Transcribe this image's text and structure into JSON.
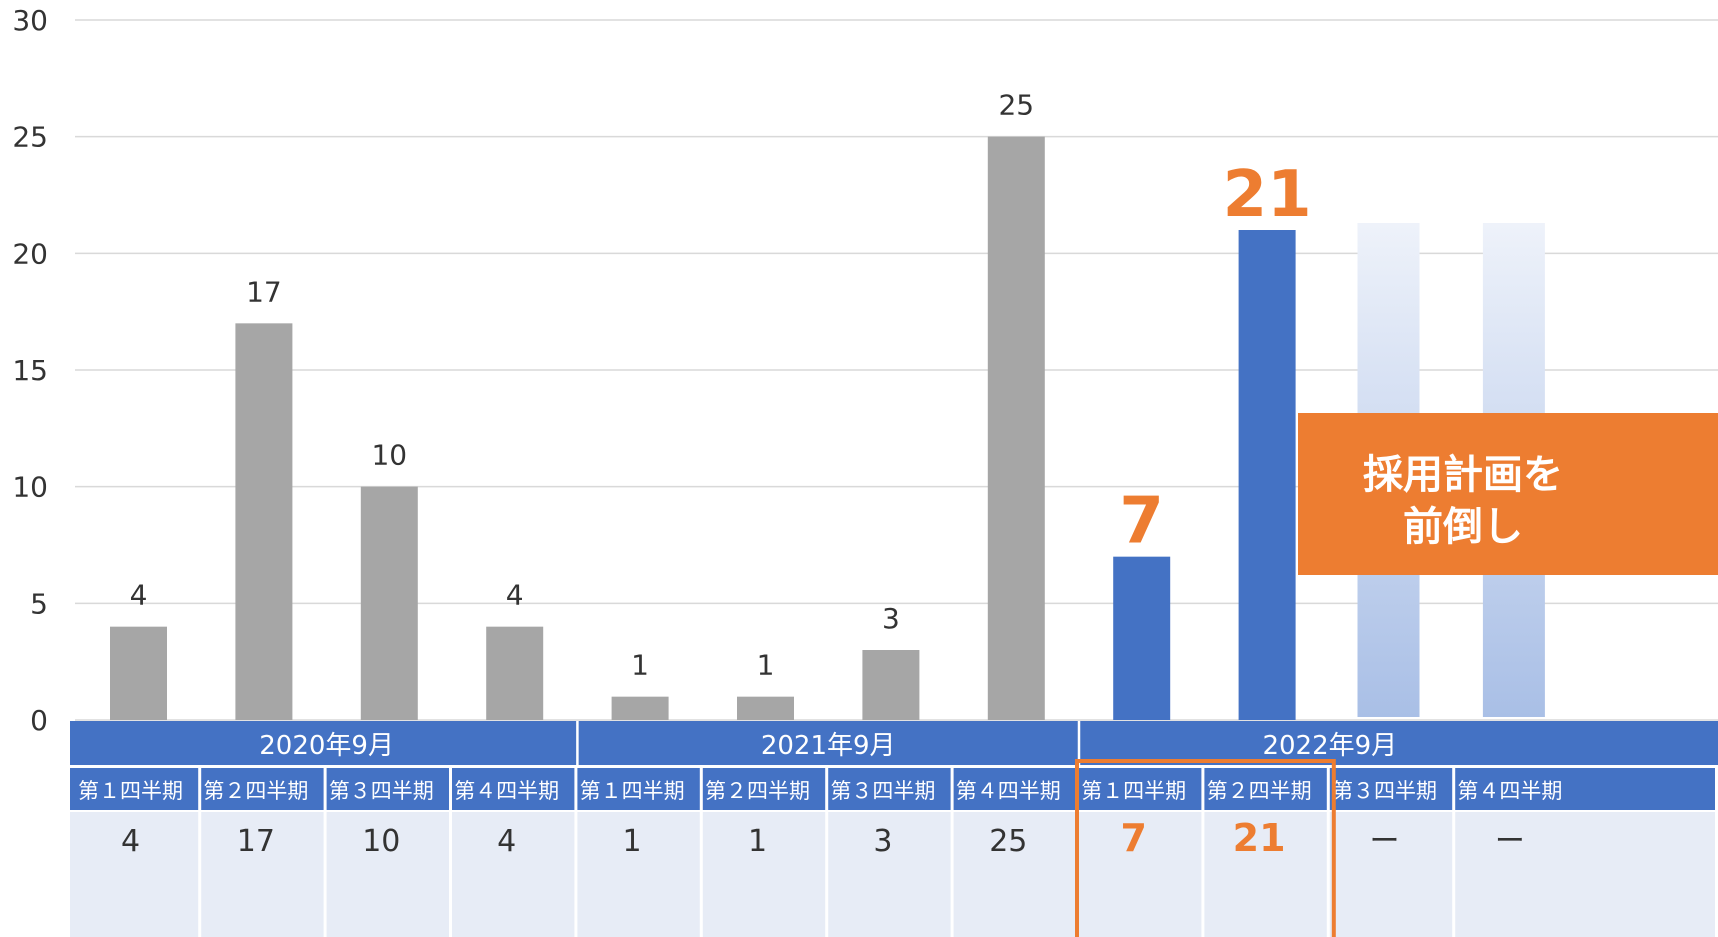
{
  "colors": {
    "past_bar": "#A6A6A6",
    "current_bar": "#4472C4",
    "future_bar_top": "#EEF2FA",
    "future_bar_bottom": "#A9BFE6",
    "highlight": "#ED7D31",
    "header_blue": "#4472C4",
    "value_row_bg": "#E7ECF6",
    "grid": "#D9D9D9"
  },
  "chart_data": {
    "type": "bar",
    "ylim": [
      0,
      30
    ],
    "yticks": [
      "0",
      "5",
      "10",
      "15",
      "20",
      "25",
      "30"
    ],
    "year_groups": [
      "2020年9月",
      "2021年9月",
      "2022年9月"
    ],
    "categories": [
      "第１四半期",
      "第２四半期",
      "第３四半期",
      "第４四半期",
      "第１四半期",
      "第２四半期",
      "第３四半期",
      "第４四半期",
      "第１四半期",
      "第２四半期",
      "第３四半期",
      "第４四半期"
    ],
    "values": [
      4,
      17,
      10,
      4,
      1,
      1,
      3,
      25,
      7,
      21,
      null,
      null
    ],
    "data_labels": [
      "4",
      "17",
      "10",
      "4",
      "1",
      "1",
      "3",
      "25",
      "7",
      "21",
      "",
      ""
    ],
    "table_values": [
      "4",
      "17",
      "10",
      "4",
      "1",
      "1",
      "3",
      "25",
      "7",
      "21",
      "ー",
      "ー"
    ],
    "bar_status": [
      "past",
      "past",
      "past",
      "past",
      "past",
      "past",
      "past",
      "past",
      "current",
      "current",
      "future",
      "future"
    ],
    "highlighted_indices": [
      8,
      9
    ],
    "grid": true,
    "callout": [
      "採用計画を",
      "前倒し"
    ]
  }
}
